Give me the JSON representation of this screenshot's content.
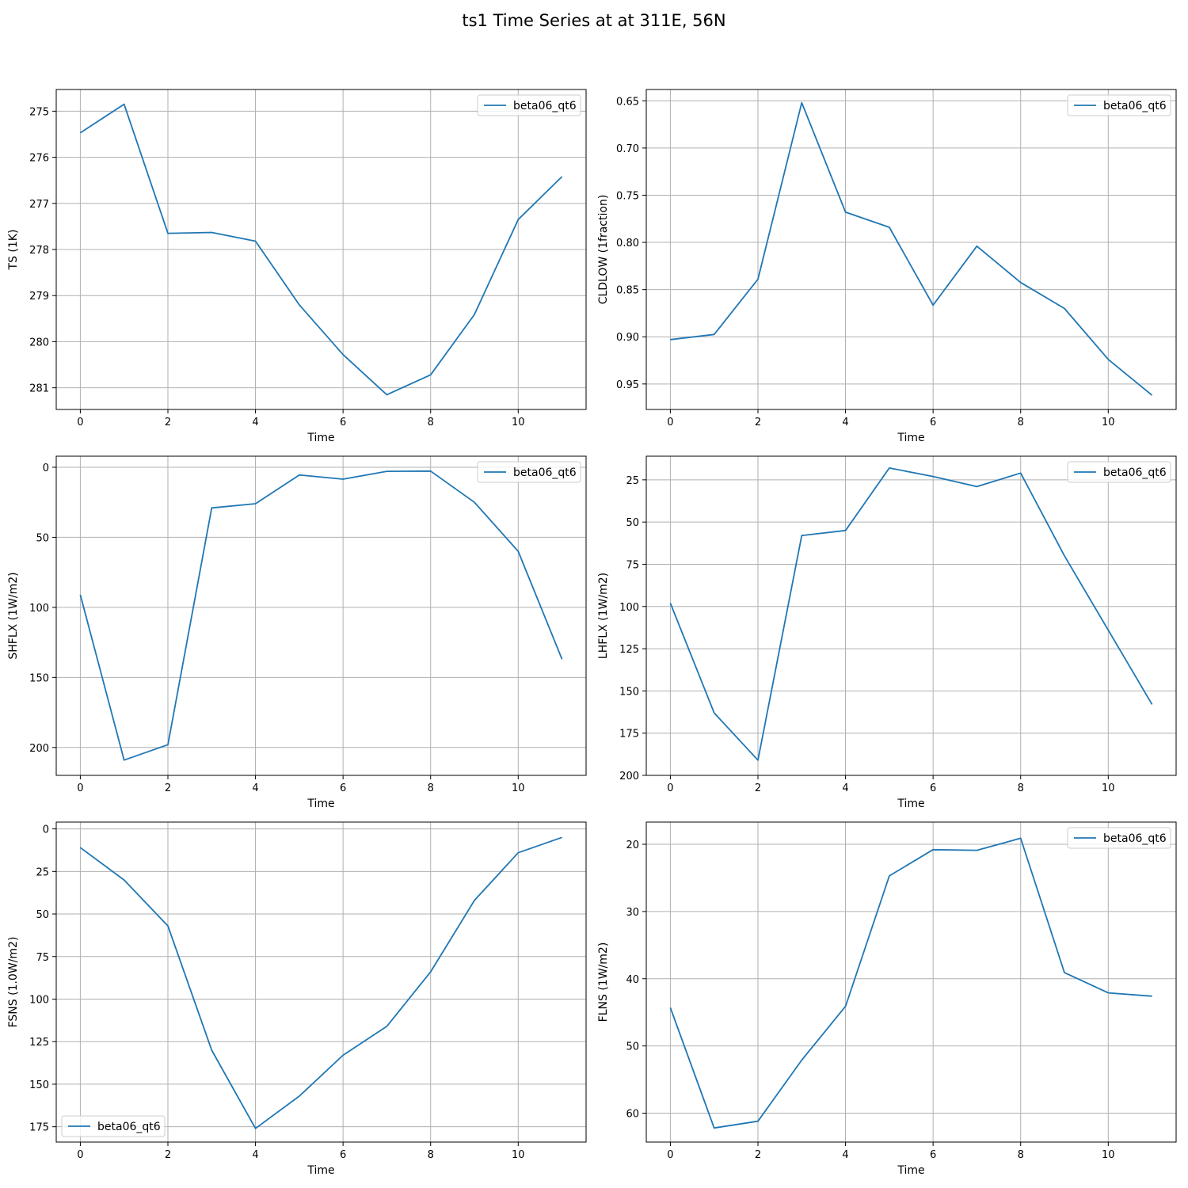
{
  "figure": {
    "title": "ts1 Time Series at at 311E, 56N"
  },
  "chart_data": [
    {
      "type": "line",
      "xlabel": "Time",
      "ylabel": "TS (1K)",
      "xlim": [
        -0.55,
        11.55
      ],
      "xticks": [
        0,
        2,
        4,
        6,
        8,
        10
      ],
      "ylim": [
        281.47,
        274.53
      ],
      "yticks": [
        275,
        276,
        277,
        278,
        279,
        280,
        281
      ],
      "y_inverted": true,
      "grid": true,
      "legend": "top-right",
      "series": [
        {
          "name": "beta06_qt6",
          "x": [
            0,
            1,
            2,
            3,
            4,
            5,
            6,
            7,
            8,
            9,
            10,
            11
          ],
          "y": [
            275.47,
            274.85,
            277.65,
            277.63,
            277.82,
            279.2,
            280.28,
            281.15,
            280.72,
            279.41,
            277.35,
            276.42
          ]
        }
      ]
    },
    {
      "type": "line",
      "xlabel": "Time",
      "ylabel": "CLDLOW (1fraction)",
      "xlim": [
        -0.55,
        11.55
      ],
      "xticks": [
        0,
        2,
        4,
        6,
        8,
        10
      ],
      "ylim": [
        0.977,
        0.638
      ],
      "yticks": [
        0.65,
        0.7,
        0.75,
        0.8,
        0.85,
        0.9,
        0.95
      ],
      "ytick_labels": [
        "0.65",
        "0.70",
        "0.75",
        "0.80",
        "0.85",
        "0.90",
        "0.95"
      ],
      "y_inverted": true,
      "grid": true,
      "legend": "top-right",
      "series": [
        {
          "name": "beta06_qt6",
          "x": [
            0,
            1,
            2,
            3,
            4,
            5,
            6,
            7,
            8,
            9,
            10,
            11
          ],
          "y": [
            0.903,
            0.8975,
            0.839,
            0.652,
            0.768,
            0.784,
            0.8665,
            0.804,
            0.8425,
            0.87,
            0.924,
            0.962
          ]
        }
      ]
    },
    {
      "type": "line",
      "xlabel": "Time",
      "ylabel": "SHFLX (1W/m2)",
      "xlim": [
        -0.55,
        11.55
      ],
      "xticks": [
        0,
        2,
        4,
        6,
        8,
        10
      ],
      "ylim": [
        219.9,
        -7.9
      ],
      "yticks": [
        0,
        50,
        100,
        150,
        200
      ],
      "y_inverted": true,
      "grid": true,
      "legend": "top-right",
      "series": [
        {
          "name": "beta06_qt6",
          "x": [
            0,
            1,
            2,
            3,
            4,
            5,
            6,
            7,
            8,
            9,
            10,
            11
          ],
          "y": [
            91,
            209,
            198,
            29,
            26,
            5.5,
            8.5,
            2.9,
            2.7,
            25,
            60,
            137
          ]
        }
      ]
    },
    {
      "type": "line",
      "xlabel": "Time",
      "ylabel": "LHFLX (1W/m2)",
      "xlim": [
        -0.55,
        11.55
      ],
      "xticks": [
        0,
        2,
        4,
        6,
        8,
        10
      ],
      "ylim": [
        200.0,
        11.0
      ],
      "yticks": [
        25,
        50,
        75,
        100,
        125,
        150,
        175,
        200
      ],
      "y_inverted": true,
      "grid": true,
      "legend": "top-right",
      "series": [
        {
          "name": "beta06_qt6",
          "x": [
            0,
            1,
            2,
            3,
            4,
            5,
            6,
            7,
            8,
            9,
            10,
            11
          ],
          "y": [
            98,
            163,
            191,
            58,
            55,
            18,
            23,
            29,
            21,
            70,
            114,
            158
          ]
        }
      ]
    },
    {
      "type": "line",
      "xlabel": "Time",
      "ylabel": "FSNS (1.0W/m2)",
      "xlim": [
        -0.55,
        11.55
      ],
      "xticks": [
        0,
        2,
        4,
        6,
        8,
        10
      ],
      "ylim": [
        184.0,
        -4.0
      ],
      "yticks": [
        0,
        25,
        50,
        75,
        100,
        125,
        150,
        175
      ],
      "y_inverted": true,
      "grid": true,
      "legend": "bottom-left",
      "series": [
        {
          "name": "beta06_qt6",
          "x": [
            0,
            1,
            2,
            3,
            4,
            5,
            6,
            7,
            8,
            9,
            10,
            11
          ],
          "y": [
            11,
            30,
            57,
            130,
            176,
            157,
            133,
            116,
            84,
            42,
            14,
            5
          ]
        }
      ]
    },
    {
      "type": "line",
      "xlabel": "Time",
      "ylabel": "FLNS (1W/m2)",
      "xlim": [
        -0.55,
        11.55
      ],
      "xticks": [
        0,
        2,
        4,
        6,
        8,
        10
      ],
      "ylim": [
        64.3,
        16.7
      ],
      "yticks": [
        20,
        30,
        40,
        50,
        60
      ],
      "y_inverted": true,
      "grid": true,
      "legend": "top-right",
      "series": [
        {
          "name": "beta06_qt6",
          "x": [
            0,
            1,
            2,
            3,
            4,
            5,
            6,
            7,
            8,
            9,
            10,
            11
          ],
          "y": [
            44.3,
            62.2,
            61.2,
            52.1,
            44.1,
            24.7,
            20.8,
            20.9,
            19.1,
            39.1,
            42.1,
            42.6
          ]
        }
      ]
    }
  ],
  "colors": {
    "series": "#1f77b4",
    "grid": "#b0b0b0",
    "axes": "#000000"
  }
}
